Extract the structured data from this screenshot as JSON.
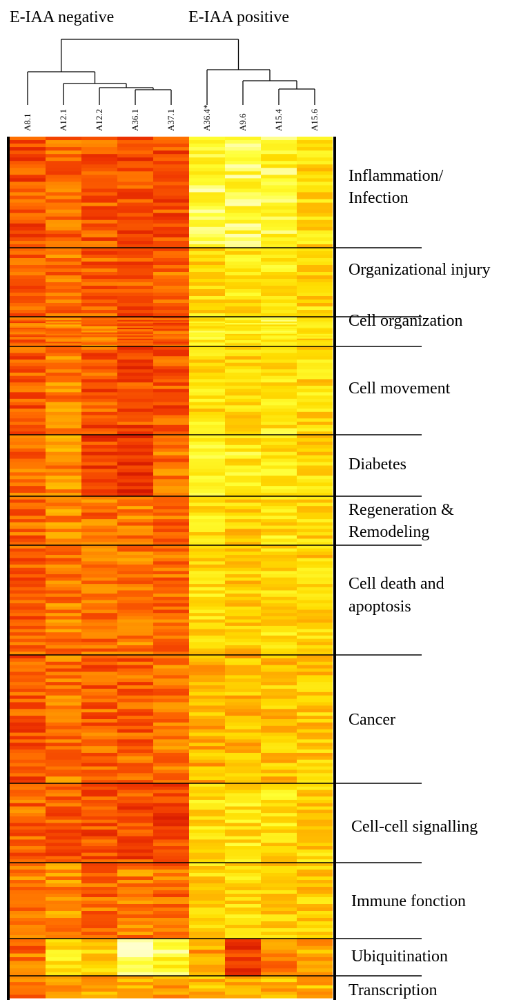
{
  "groups": {
    "negative": "E-IAA negative",
    "positive": "E-IAA positive"
  },
  "chart_data": {
    "type": "heatmap",
    "title": "",
    "columns": [
      "A8.1",
      "A12.1",
      "A12.2",
      "A36.1",
      "A37.1",
      "A36.4*",
      "A9.6",
      "A15.4",
      "A15.6"
    ],
    "column_groups": [
      {
        "name": "E-IAA negative",
        "columns": [
          "A8.1",
          "A12.1",
          "A12.2",
          "A36.1",
          "A37.1"
        ]
      },
      {
        "name": "E-IAA positive",
        "columns": [
          "A36.4*",
          "A9.6",
          "A15.4",
          "A15.6"
        ]
      }
    ],
    "dendrogram": "((A8.1,(A12.1,(A12.2,(A36.1,A37.1)))),(A36.4*,(A9.6,(A15.4,A15.6))))",
    "color_scale": [
      "#cc1100",
      "#ee3300",
      "#ff6a00",
      "#ffaa00",
      "#ffdd00",
      "#ffff33",
      "#ffffcc"
    ],
    "categories": [
      {
        "label": [
          "Inflammation/",
          "Infection"
        ],
        "rows": 32,
        "levels": [
          1.6,
          2.0,
          1.7,
          1.4,
          1.5,
          5.0,
          5.0,
          4.8,
          4.0
        ]
      },
      {
        "label": [
          "Organizational injury"
        ],
        "rows": 20,
        "levels": [
          1.9,
          2.1,
          1.8,
          1.7,
          1.9,
          4.0,
          4.2,
          4.3,
          3.9
        ]
      },
      {
        "label": [
          "Cell organization"
        ],
        "rows": 19,
        "levels": [
          1.9,
          2.3,
          2.1,
          1.6,
          1.7,
          4.6,
          4.2,
          4.7,
          3.9
        ]
      },
      {
        "label": [
          "Cell movement"
        ],
        "rows": 27,
        "levels": [
          1.6,
          2.4,
          1.6,
          1.4,
          1.6,
          4.1,
          4.0,
          4.3,
          4.0
        ]
      },
      {
        "label": [
          "Diabetes"
        ],
        "rows": 18,
        "levels": [
          1.9,
          2.6,
          1.2,
          1.1,
          2.1,
          4.5,
          4.4,
          4.3,
          3.9
        ]
      },
      {
        "label": [
          "Regeneration &",
          "Remodeling"
        ],
        "rows": 15,
        "levels": [
          1.9,
          2.5,
          2.1,
          2.3,
          1.9,
          4.3,
          3.8,
          4.2,
          3.9
        ]
      },
      {
        "label": [
          "Cell death and",
          "apoptosis"
        ],
        "rows": 34,
        "levels": [
          1.8,
          2.3,
          2.0,
          2.2,
          2.0,
          4.1,
          3.6,
          4.1,
          3.8
        ]
      },
      {
        "label": [
          "Cancer"
        ],
        "rows": 38,
        "levels": [
          1.6,
          2.1,
          1.8,
          1.8,
          2.2,
          3.2,
          3.4,
          3.5,
          3.6
        ]
      },
      {
        "label": [
          "Cell-cell signalling"
        ],
        "rows": 24,
        "levels": [
          1.9,
          1.7,
          1.5,
          1.4,
          1.3,
          4.1,
          4.2,
          4.1,
          3.8
        ]
      },
      {
        "label": [
          "Immune fonction"
        ],
        "rows": 22,
        "levels": [
          2.2,
          2.6,
          2.0,
          2.3,
          2.0,
          3.9,
          4.0,
          3.7,
          3.6
        ]
      },
      {
        "label": [
          "Ubiquitination"
        ],
        "rows": 10,
        "levels": [
          2.1,
          4.1,
          3.9,
          5.4,
          4.9,
          3.0,
          1.2,
          2.4,
          3.0
        ]
      },
      {
        "label": [
          "Transcription"
        ],
        "rows": 7,
        "levels": [
          2.3,
          3.1,
          2.9,
          3.0,
          3.0,
          3.4,
          3.1,
          3.3,
          3.3
        ]
      }
    ],
    "legend": "none"
  }
}
